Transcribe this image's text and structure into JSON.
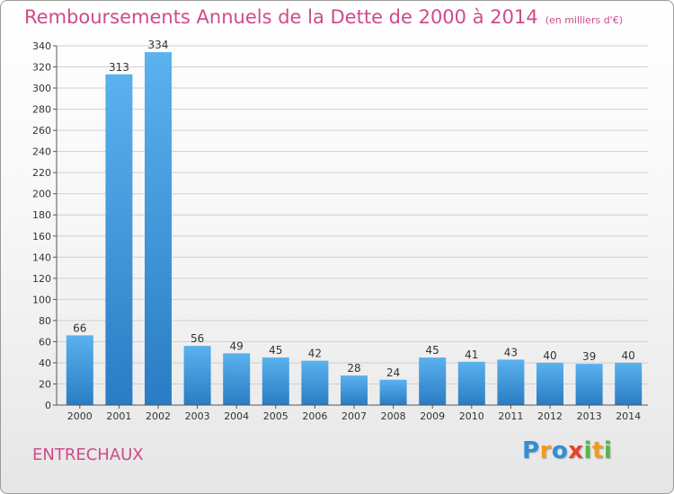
{
  "chart_data": {
    "type": "bar",
    "title": "Remboursements Annuels de la Dette de 2000 à 2014",
    "unit_note": "(en milliers d'€)",
    "categories": [
      "2000",
      "2001",
      "2002",
      "2003",
      "2004",
      "2005",
      "2006",
      "2007",
      "2008",
      "2009",
      "2010",
      "2011",
      "2012",
      "2013",
      "2014"
    ],
    "values": [
      66,
      313,
      334,
      56,
      49,
      45,
      42,
      28,
      24,
      45,
      41,
      43,
      40,
      39,
      40
    ],
    "ylim": [
      0,
      340
    ],
    "yticks": [
      0,
      20,
      40,
      60,
      80,
      100,
      120,
      140,
      160,
      180,
      200,
      220,
      240,
      260,
      280,
      300,
      320,
      340
    ],
    "grid": true,
    "bar_color": "#3a95dc"
  },
  "footer": {
    "town": "ENTRECHAUX",
    "logo_letters": [
      {
        "ch": "P",
        "color": "#2f8fd8"
      },
      {
        "ch": "r",
        "color": "#f39a1e"
      },
      {
        "ch": "o",
        "color": "#2f8fd8"
      },
      {
        "ch": "x",
        "color": "#e8402a"
      },
      {
        "ch": "i",
        "color": "#54b848"
      },
      {
        "ch": "t",
        "color": "#f39a1e"
      },
      {
        "ch": "i",
        "color": "#54b848"
      }
    ]
  }
}
